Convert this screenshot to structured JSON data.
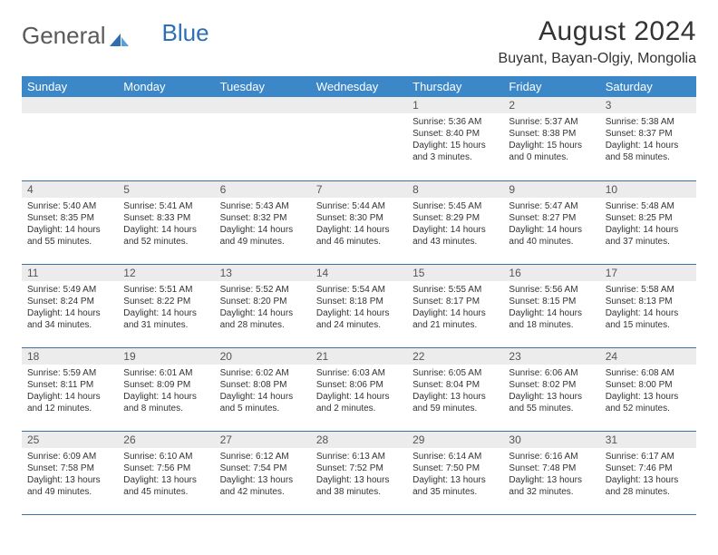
{
  "brand": {
    "part1": "General",
    "part2": "Blue"
  },
  "title": "August 2024",
  "location": "Buyant, Bayan-Olgiy, Mongolia",
  "colors": {
    "header_bg": "#3b87c8",
    "header_text": "#ffffff",
    "daynum_bg": "#ececec",
    "cell_border": "#3b6fa5",
    "brand_grey": "#5a5a5a",
    "brand_blue": "#2c6fb5"
  },
  "daynames": [
    "Sunday",
    "Monday",
    "Tuesday",
    "Wednesday",
    "Thursday",
    "Friday",
    "Saturday"
  ],
  "first_weekday": 4,
  "days": [
    {
      "n": 1,
      "sunrise": "5:36 AM",
      "sunset": "8:40 PM",
      "daylight": "15 hours and 3 minutes."
    },
    {
      "n": 2,
      "sunrise": "5:37 AM",
      "sunset": "8:38 PM",
      "daylight": "15 hours and 0 minutes."
    },
    {
      "n": 3,
      "sunrise": "5:38 AM",
      "sunset": "8:37 PM",
      "daylight": "14 hours and 58 minutes."
    },
    {
      "n": 4,
      "sunrise": "5:40 AM",
      "sunset": "8:35 PM",
      "daylight": "14 hours and 55 minutes."
    },
    {
      "n": 5,
      "sunrise": "5:41 AM",
      "sunset": "8:33 PM",
      "daylight": "14 hours and 52 minutes."
    },
    {
      "n": 6,
      "sunrise": "5:43 AM",
      "sunset": "8:32 PM",
      "daylight": "14 hours and 49 minutes."
    },
    {
      "n": 7,
      "sunrise": "5:44 AM",
      "sunset": "8:30 PM",
      "daylight": "14 hours and 46 minutes."
    },
    {
      "n": 8,
      "sunrise": "5:45 AM",
      "sunset": "8:29 PM",
      "daylight": "14 hours and 43 minutes."
    },
    {
      "n": 9,
      "sunrise": "5:47 AM",
      "sunset": "8:27 PM",
      "daylight": "14 hours and 40 minutes."
    },
    {
      "n": 10,
      "sunrise": "5:48 AM",
      "sunset": "8:25 PM",
      "daylight": "14 hours and 37 minutes."
    },
    {
      "n": 11,
      "sunrise": "5:49 AM",
      "sunset": "8:24 PM",
      "daylight": "14 hours and 34 minutes."
    },
    {
      "n": 12,
      "sunrise": "5:51 AM",
      "sunset": "8:22 PM",
      "daylight": "14 hours and 31 minutes."
    },
    {
      "n": 13,
      "sunrise": "5:52 AM",
      "sunset": "8:20 PM",
      "daylight": "14 hours and 28 minutes."
    },
    {
      "n": 14,
      "sunrise": "5:54 AM",
      "sunset": "8:18 PM",
      "daylight": "14 hours and 24 minutes."
    },
    {
      "n": 15,
      "sunrise": "5:55 AM",
      "sunset": "8:17 PM",
      "daylight": "14 hours and 21 minutes."
    },
    {
      "n": 16,
      "sunrise": "5:56 AM",
      "sunset": "8:15 PM",
      "daylight": "14 hours and 18 minutes."
    },
    {
      "n": 17,
      "sunrise": "5:58 AM",
      "sunset": "8:13 PM",
      "daylight": "14 hours and 15 minutes."
    },
    {
      "n": 18,
      "sunrise": "5:59 AM",
      "sunset": "8:11 PM",
      "daylight": "14 hours and 12 minutes."
    },
    {
      "n": 19,
      "sunrise": "6:01 AM",
      "sunset": "8:09 PM",
      "daylight": "14 hours and 8 minutes."
    },
    {
      "n": 20,
      "sunrise": "6:02 AM",
      "sunset": "8:08 PM",
      "daylight": "14 hours and 5 minutes."
    },
    {
      "n": 21,
      "sunrise": "6:03 AM",
      "sunset": "8:06 PM",
      "daylight": "14 hours and 2 minutes."
    },
    {
      "n": 22,
      "sunrise": "6:05 AM",
      "sunset": "8:04 PM",
      "daylight": "13 hours and 59 minutes."
    },
    {
      "n": 23,
      "sunrise": "6:06 AM",
      "sunset": "8:02 PM",
      "daylight": "13 hours and 55 minutes."
    },
    {
      "n": 24,
      "sunrise": "6:08 AM",
      "sunset": "8:00 PM",
      "daylight": "13 hours and 52 minutes."
    },
    {
      "n": 25,
      "sunrise": "6:09 AM",
      "sunset": "7:58 PM",
      "daylight": "13 hours and 49 minutes."
    },
    {
      "n": 26,
      "sunrise": "6:10 AM",
      "sunset": "7:56 PM",
      "daylight": "13 hours and 45 minutes."
    },
    {
      "n": 27,
      "sunrise": "6:12 AM",
      "sunset": "7:54 PM",
      "daylight": "13 hours and 42 minutes."
    },
    {
      "n": 28,
      "sunrise": "6:13 AM",
      "sunset": "7:52 PM",
      "daylight": "13 hours and 38 minutes."
    },
    {
      "n": 29,
      "sunrise": "6:14 AM",
      "sunset": "7:50 PM",
      "daylight": "13 hours and 35 minutes."
    },
    {
      "n": 30,
      "sunrise": "6:16 AM",
      "sunset": "7:48 PM",
      "daylight": "13 hours and 32 minutes."
    },
    {
      "n": 31,
      "sunrise": "6:17 AM",
      "sunset": "7:46 PM",
      "daylight": "13 hours and 28 minutes."
    }
  ]
}
